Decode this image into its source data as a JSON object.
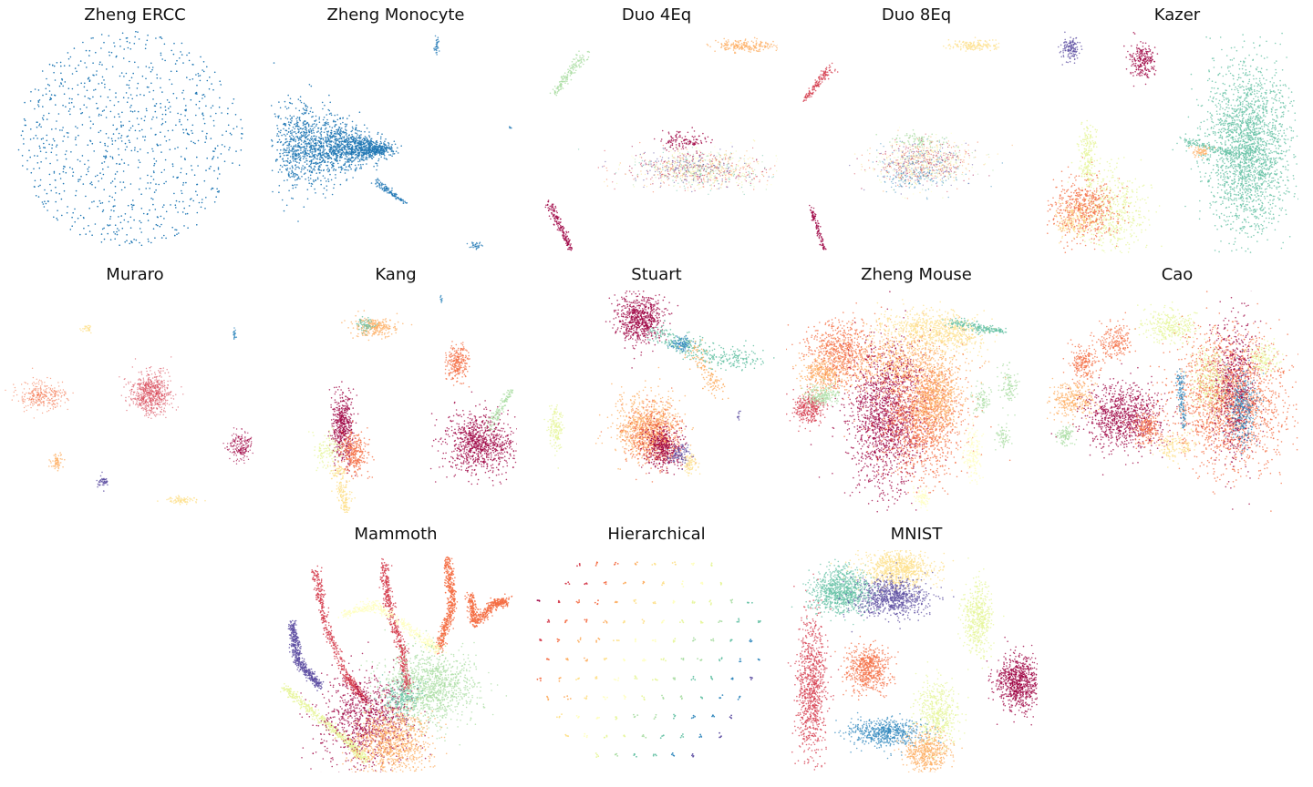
{
  "chart_data": {
    "type": "scatter",
    "palette": [
      "#9e0142",
      "#d53e4f",
      "#f46d43",
      "#fdae61",
      "#fee08b",
      "#ffffbf",
      "#e6f598",
      "#abdda4",
      "#66c2a5",
      "#3288bd",
      "#5e4fa2"
    ],
    "default_color": "#1f77b4",
    "panels": [
      {
        "title": "Zheng ERCC",
        "kind": "ercc"
      },
      {
        "title": "Zheng Monocyte",
        "kind": "monocyte"
      },
      {
        "title": "Duo 4Eq",
        "kind": "duo4"
      },
      {
        "title": "Duo 8Eq",
        "kind": "duo8"
      },
      {
        "title": "Kazer",
        "kind": "kazer"
      },
      {
        "title": "Muraro",
        "kind": "muraro"
      },
      {
        "title": "Kang",
        "kind": "kang"
      },
      {
        "title": "Stuart",
        "kind": "stuart"
      },
      {
        "title": "Zheng Mouse",
        "kind": "mouse"
      },
      {
        "title": "Cao",
        "kind": "cao"
      },
      {
        "title": "Mammoth",
        "kind": "mammoth"
      },
      {
        "title": "Hierarchical",
        "kind": "hier"
      },
      {
        "title": "MNIST",
        "kind": "mnist"
      }
    ]
  }
}
